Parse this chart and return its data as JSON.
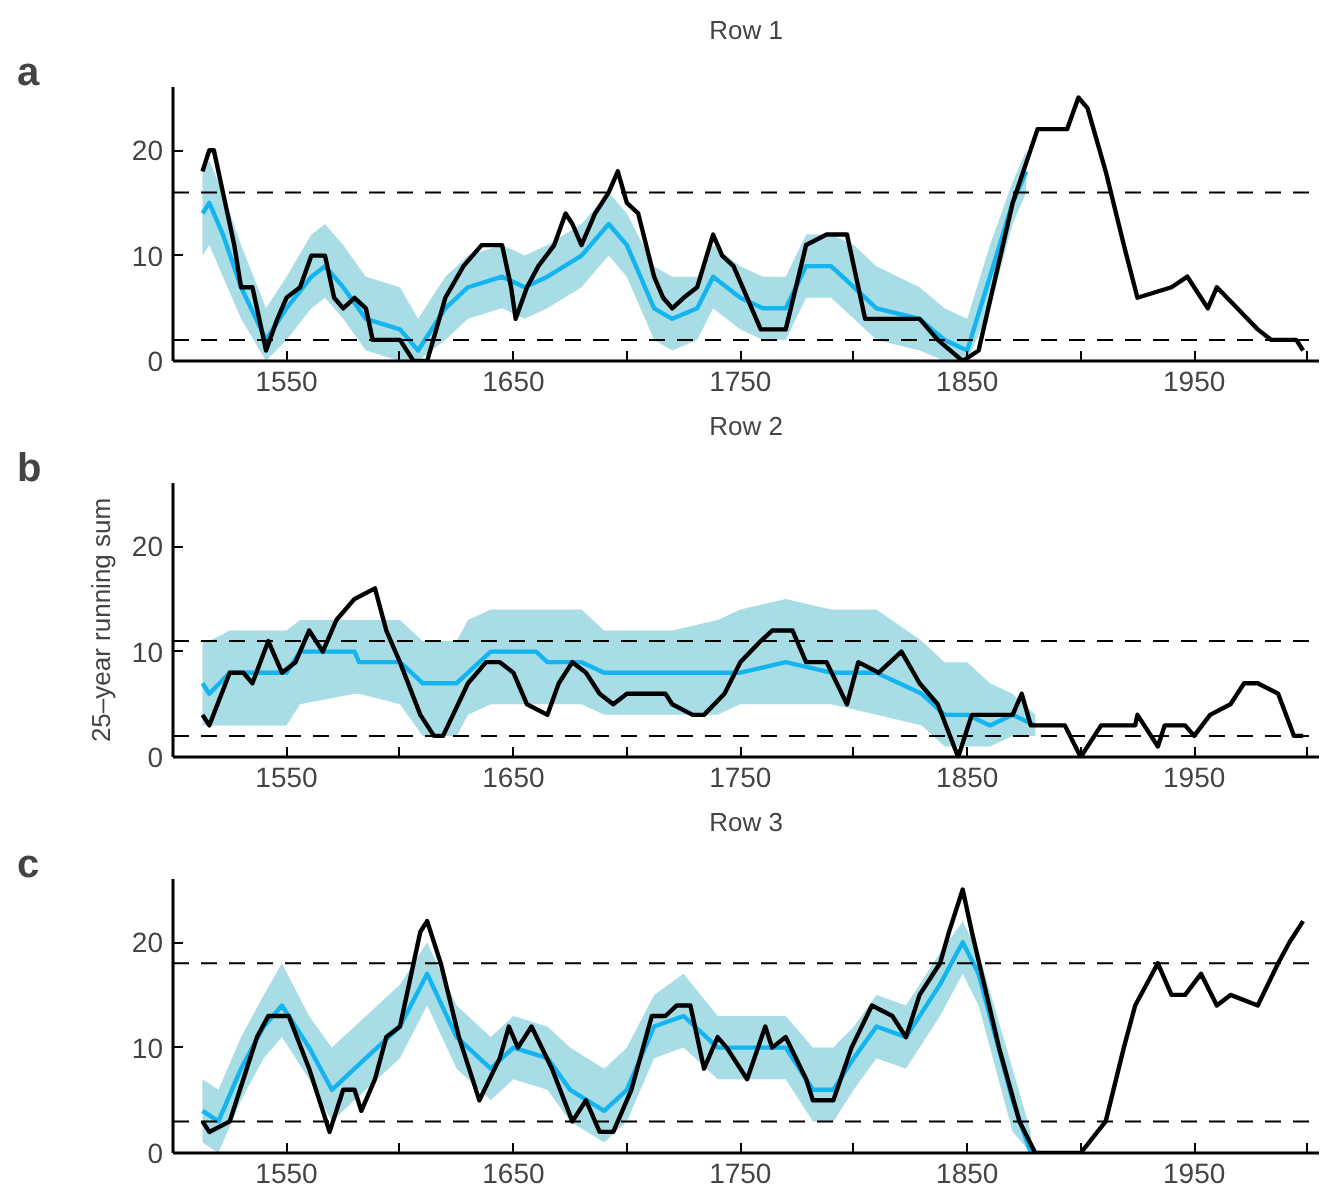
{
  "chart_data": [
    {
      "type": "line",
      "title": "Row 1",
      "annotations": [
        "a"
      ],
      "xlim": [
        1500,
        2005
      ],
      "ylim": [
        0,
        26
      ],
      "xticks": [
        1550,
        {
          "value": 1600,
          "label": null
        },
        1650,
        {
          "value": 1700,
          "label": null
        },
        1750,
        {
          "value": 1800,
          "label": null
        },
        1850,
        {
          "value": 1900,
          "label": null
        },
        1950,
        {
          "value": 2000,
          "label": null
        }
      ],
      "yticks": [
        0,
        10,
        20
      ],
      "grid": false,
      "line_style": "solid",
      "marker": "none",
      "ref_lines": [
        {
          "axis": "y",
          "value": 16,
          "color": "#000000",
          "line_style": "dashed"
        },
        {
          "axis": "y",
          "value": 2,
          "color": "#000000",
          "line_style": "dashed"
        }
      ],
      "series": [
        {
          "color": "#14b4f0",
          "x": [
            1513,
            1516,
            1522,
            1530,
            1541,
            1550,
            1561,
            1567,
            1575,
            1585,
            1600,
            1608,
            1620,
            1630,
            1645,
            1655,
            1665,
            1680,
            1692,
            1700,
            1712,
            1720,
            1731,
            1738,
            1750,
            1760,
            1770,
            1779,
            1790,
            1800,
            1810,
            1829,
            1840,
            1850,
            1860,
            1870,
            1876
          ],
          "values": [
            14,
            15,
            12,
            7,
            2,
            5,
            8,
            9,
            7,
            4,
            3,
            1,
            5,
            7,
            8,
            7,
            8,
            10,
            13,
            11,
            5,
            4,
            5,
            8,
            6,
            5,
            5,
            9,
            9,
            7,
            5,
            4,
            2,
            1,
            8,
            15,
            18
          ],
          "lower": [
            10,
            11,
            8,
            4,
            0,
            2,
            5,
            6,
            4,
            1,
            0,
            0,
            2,
            4,
            5,
            4,
            5,
            7,
            10,
            8,
            2,
            1,
            2,
            5,
            3,
            2,
            2,
            6,
            6,
            4,
            2,
            1,
            0,
            0,
            5,
            13,
            16
          ],
          "upper": [
            18,
            19,
            16,
            11,
            5,
            8,
            12,
            13,
            11,
            8,
            7,
            4,
            8,
            10,
            11,
            10,
            11,
            13,
            16,
            14,
            9,
            8,
            8,
            11,
            9,
            8,
            8,
            12,
            12,
            11,
            9,
            7,
            5,
            4,
            11,
            17,
            20
          ]
        },
        {
          "color": "#000000",
          "x": [
            1513,
            1516,
            1518,
            1522,
            1527,
            1530,
            1535,
            1541,
            1546,
            1550,
            1556,
            1561,
            1567,
            1571,
            1575,
            1580,
            1585,
            1588,
            1600,
            1606,
            1612,
            1620,
            1628,
            1636,
            1645,
            1649,
            1651,
            1656,
            1661,
            1668,
            1673,
            1676,
            1680,
            1686,
            1692,
            1696,
            1700,
            1705,
            1712,
            1716,
            1720,
            1725,
            1731,
            1738,
            1742,
            1747,
            1759,
            1770,
            1779,
            1788,
            1797,
            1805,
            1811,
            1829,
            1837,
            1848,
            1855,
            1870,
            1881,
            1894,
            1899,
            1903,
            1911,
            1919,
            1925,
            1940,
            1947,
            1956,
            1960,
            1969,
            1978,
            1984,
            1995,
            1998
          ],
          "values": [
            18,
            20,
            20,
            16,
            11,
            7,
            7,
            1,
            4,
            6,
            7,
            10,
            10,
            6,
            5,
            6,
            5,
            2,
            2,
            0,
            0,
            6,
            9,
            11,
            11,
            7,
            4,
            7,
            9,
            11,
            14,
            13,
            11,
            14,
            16,
            18,
            15,
            14,
            8,
            6,
            5,
            6,
            7,
            12,
            10,
            9,
            3,
            3,
            11,
            12,
            12,
            4,
            4,
            4,
            2,
            0,
            1,
            15,
            22,
            22,
            25,
            24,
            18,
            11,
            6,
            7,
            8,
            5,
            7,
            5,
            3,
            2,
            2,
            1
          ]
        }
      ]
    },
    {
      "type": "line",
      "title": "Row 2",
      "ylabel": "25–year running sum",
      "annotations": [
        "b"
      ],
      "xlim": [
        1500,
        2005
      ],
      "ylim": [
        0,
        26
      ],
      "xticks": [
        1550,
        {
          "value": 1600,
          "label": null
        },
        1650,
        {
          "value": 1700,
          "label": null
        },
        1750,
        {
          "value": 1800,
          "label": null
        },
        1850,
        {
          "value": 1900,
          "label": null
        },
        1950,
        {
          "value": 2000,
          "label": null
        }
      ],
      "yticks": [
        0,
        10,
        20
      ],
      "grid": false,
      "line_style": "solid",
      "marker": "none",
      "ref_lines": [
        {
          "axis": "y",
          "value": 11,
          "color": "#000000",
          "line_style": "dashed"
        },
        {
          "axis": "y",
          "value": 2,
          "color": "#000000",
          "line_style": "dashed"
        }
      ],
      "series": [
        {
          "color": "#14b4f0",
          "x": [
            1513,
            1516,
            1525,
            1550,
            1556,
            1580,
            1582,
            1600,
            1610,
            1625,
            1630,
            1640,
            1660,
            1665,
            1680,
            1690,
            1720,
            1740,
            1750,
            1770,
            1790,
            1810,
            1830,
            1840,
            1850,
            1860,
            1870,
            1880
          ],
          "values": [
            7,
            6,
            8,
            8,
            10,
            10,
            9,
            9,
            7,
            7,
            8,
            10,
            10,
            9,
            9,
            8,
            8,
            8,
            8,
            9,
            8,
            8,
            6,
            4,
            4,
            3,
            4,
            3
          ],
          "lower": [
            3,
            3,
            3,
            3,
            5,
            6,
            6,
            5,
            2,
            2,
            4,
            5,
            5,
            5,
            5,
            4,
            4,
            4,
            5,
            5,
            5,
            4,
            3,
            1,
            1,
            1,
            2,
            2
          ],
          "upper": [
            11,
            11,
            12,
            12,
            13,
            13,
            13,
            13,
            11,
            11,
            13,
            14,
            14,
            14,
            14,
            12,
            12,
            13,
            14,
            15,
            14,
            14,
            11,
            9,
            9,
            7,
            6,
            4
          ]
        },
        {
          "color": "#000000",
          "x": [
            1513,
            1516,
            1525,
            1531,
            1535,
            1542,
            1548,
            1554,
            1560,
            1566,
            1572,
            1580,
            1589,
            1594,
            1600,
            1609,
            1615,
            1619,
            1630,
            1638,
            1644,
            1650,
            1656,
            1665,
            1670,
            1676,
            1682,
            1688,
            1694,
            1700,
            1708,
            1717,
            1720,
            1729,
            1734,
            1743,
            1750,
            1759,
            1764,
            1770,
            1773,
            1779,
            1788,
            1797,
            1802,
            1811,
            1821,
            1829,
            1837,
            1846,
            1852,
            1861,
            1870,
            1874,
            1878,
            1893,
            1900,
            1909,
            1924,
            1925,
            1934,
            1937,
            1946,
            1950,
            1957,
            1966,
            1972,
            1978,
            1987,
            1994,
            1998
          ],
          "values": [
            4,
            3,
            8,
            8,
            7,
            11,
            8,
            9,
            12,
            10,
            13,
            15,
            16,
            12,
            9,
            4,
            2,
            2,
            7,
            9,
            9,
            8,
            5,
            4,
            7,
            9,
            8,
            6,
            5,
            6,
            6,
            6,
            5,
            4,
            4,
            6,
            9,
            11,
            12,
            12,
            12,
            9,
            9,
            5,
            9,
            8,
            10,
            7,
            5,
            0,
            4,
            4,
            4,
            6,
            3,
            3,
            0,
            3,
            3,
            4,
            1,
            3,
            3,
            2,
            4,
            5,
            7,
            7,
            6,
            2,
            2
          ]
        }
      ]
    },
    {
      "type": "line",
      "title": "Row 3",
      "annotations": [
        "c"
      ],
      "xlim": [
        1500,
        2005
      ],
      "ylim": [
        0,
        26
      ],
      "xticks": [
        1550,
        {
          "value": 1600,
          "label": null
        },
        1650,
        {
          "value": 1700,
          "label": null
        },
        1750,
        {
          "value": 1800,
          "label": null
        },
        1850,
        {
          "value": 1900,
          "label": null
        },
        1950,
        {
          "value": 2000,
          "label": null
        }
      ],
      "yticks": [
        0,
        10,
        20
      ],
      "grid": false,
      "line_style": "solid",
      "marker": "none",
      "ref_lines": [
        {
          "axis": "y",
          "value": 18,
          "color": "#000000",
          "line_style": "dashed"
        },
        {
          "axis": "y",
          "value": 3,
          "color": "#000000",
          "line_style": "dashed"
        }
      ],
      "series": [
        {
          "color": "#14b4f0",
          "x": [
            1513,
            1520,
            1530,
            1540,
            1548,
            1560,
            1570,
            1580,
            1590,
            1600,
            1612,
            1625,
            1640,
            1650,
            1665,
            1675,
            1690,
            1700,
            1712,
            1725,
            1740,
            1760,
            1770,
            1782,
            1791,
            1800,
            1810,
            1823,
            1838,
            1848,
            1855,
            1870,
            1878
          ],
          "values": [
            4,
            3,
            8,
            12,
            14,
            10,
            6,
            8,
            10,
            12,
            17,
            11,
            8,
            10,
            9,
            6,
            4,
            6,
            12,
            13,
            10,
            10,
            10,
            6,
            6,
            9,
            12,
            11,
            16,
            20,
            17,
            5,
            0
          ],
          "lower": [
            1,
            0,
            5,
            9,
            11,
            7,
            3,
            5,
            7,
            9,
            14,
            8,
            5,
            7,
            6,
            3,
            1,
            3,
            9,
            10,
            7,
            7,
            7,
            3,
            3,
            6,
            9,
            8,
            13,
            17,
            14,
            2,
            0
          ],
          "upper": [
            7,
            6,
            11,
            15,
            18,
            13,
            10,
            12,
            14,
            16,
            20,
            14,
            11,
            13,
            12,
            10,
            8,
            10,
            15,
            17,
            13,
            13,
            13,
            10,
            10,
            12,
            15,
            14,
            19,
            22,
            19,
            8,
            2
          ]
        },
        {
          "color": "#000000",
          "x": [
            1513,
            1516,
            1525,
            1531,
            1537,
            1542,
            1551,
            1560,
            1569,
            1575,
            1580,
            1583,
            1589,
            1594,
            1600,
            1609,
            1612,
            1618,
            1626,
            1635,
            1644,
            1648,
            1652,
            1658,
            1667,
            1676,
            1682,
            1688,
            1694,
            1702,
            1711,
            1717,
            1722,
            1728,
            1734,
            1740,
            1744,
            1753,
            1761,
            1764,
            1770,
            1779,
            1782,
            1791,
            1799,
            1808,
            1817,
            1823,
            1829,
            1838,
            1842,
            1848,
            1852,
            1864,
            1873,
            1880,
            1900,
            1911,
            1919,
            1924,
            1934,
            1940,
            1946,
            1953,
            1960,
            1966,
            1978,
            1987,
            1992,
            1998
          ],
          "values": [
            3,
            2,
            3,
            7,
            11,
            13,
            13,
            8,
            2,
            6,
            6,
            4,
            7,
            11,
            12,
            21,
            22,
            18,
            11,
            5,
            9,
            12,
            10,
            12,
            8,
            3,
            5,
            2,
            2,
            6,
            13,
            13,
            14,
            14,
            8,
            11,
            10,
            7,
            12,
            10,
            11,
            7,
            5,
            5,
            10,
            14,
            13,
            11,
            15,
            18,
            21,
            25,
            21,
            10,
            3,
            0,
            0,
            3,
            10,
            14,
            18,
            15,
            15,
            17,
            14,
            15,
            14,
            18,
            20,
            22
          ]
        }
      ]
    }
  ]
}
